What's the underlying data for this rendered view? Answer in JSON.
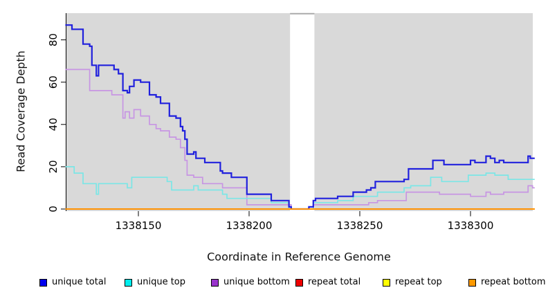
{
  "figure": {
    "background": "#ffffff",
    "panel_background": "#d9d9d9",
    "axis_color": "#000000",
    "gap_band_color": "#ffffff",
    "gap_band_top_line_color": "#aaaaaa"
  },
  "chart_data": {
    "type": "line",
    "step": true,
    "grid": false,
    "title": "",
    "xlabel": "Coordinate in Reference Genome",
    "ylabel": "Read Coverage Depth",
    "legend_position": "bottom",
    "xlim": [
      1338117,
      1338329
    ],
    "ylim": [
      0,
      92.6
    ],
    "x_ticks": [
      1338150,
      1338200,
      1338250,
      1338300
    ],
    "y_ticks": [
      0,
      20,
      40,
      60,
      80
    ],
    "gap_region": [
      1338218.5,
      1338229.5
    ],
    "series": [
      {
        "name": "repeat total",
        "line_color": "#dd0000",
        "legend_fill": "#ee0000",
        "values": [
          [
            1338117,
            0
          ]
        ]
      },
      {
        "name": "repeat top",
        "line_color": "#eeee00",
        "legend_fill": "#ffff00",
        "values": [
          [
            1338117,
            0
          ]
        ]
      },
      {
        "name": "unique bottom",
        "line_color": "#c795e3",
        "legend_fill": "#9933cc",
        "values": [
          [
            1338117,
            66
          ],
          [
            1338128,
            56
          ],
          [
            1338138,
            54
          ],
          [
            1338143,
            43
          ],
          [
            1338144,
            46
          ],
          [
            1338146,
            43
          ],
          [
            1338148,
            47
          ],
          [
            1338151,
            44
          ],
          [
            1338155,
            40
          ],
          [
            1338158,
            38
          ],
          [
            1338160,
            37
          ],
          [
            1338164,
            34
          ],
          [
            1338167,
            33
          ],
          [
            1338169,
            29
          ],
          [
            1338171,
            23
          ],
          [
            1338172,
            16
          ],
          [
            1338175,
            15
          ],
          [
            1338179,
            12
          ],
          [
            1338188,
            10
          ],
          [
            1338199,
            2
          ],
          [
            1338219,
            0
          ],
          [
            1338229,
            2
          ],
          [
            1338254,
            3
          ],
          [
            1338258,
            4
          ],
          [
            1338271,
            8
          ],
          [
            1338286,
            7
          ],
          [
            1338300,
            6
          ],
          [
            1338307,
            8
          ],
          [
            1338309,
            7
          ],
          [
            1338315,
            8
          ],
          [
            1338326,
            11
          ],
          [
            1338328,
            10
          ]
        ]
      },
      {
        "name": "unique top",
        "line_color": "#7be6e6",
        "legend_fill": "#00eeee",
        "values": [
          [
            1338117,
            20
          ],
          [
            1338121,
            17
          ],
          [
            1338125,
            12
          ],
          [
            1338131,
            7
          ],
          [
            1338132,
            12
          ],
          [
            1338145,
            10
          ],
          [
            1338147,
            15
          ],
          [
            1338163,
            13
          ],
          [
            1338165,
            9
          ],
          [
            1338175,
            11
          ],
          [
            1338177,
            9
          ],
          [
            1338188,
            7
          ],
          [
            1338190,
            5
          ],
          [
            1338210,
            3
          ],
          [
            1338218,
            0
          ],
          [
            1338229,
            3
          ],
          [
            1338240,
            4
          ],
          [
            1338247,
            6
          ],
          [
            1338258,
            8
          ],
          [
            1338270,
            10
          ],
          [
            1338273,
            11
          ],
          [
            1338282,
            15
          ],
          [
            1338287,
            13
          ],
          [
            1338299,
            16
          ],
          [
            1338307,
            17
          ],
          [
            1338311,
            16
          ],
          [
            1338317,
            14
          ]
        ]
      },
      {
        "name": "unique total",
        "line_color": "#2020dd",
        "legend_fill": "#0000ee",
        "values": [
          [
            1338117,
            87
          ],
          [
            1338120,
            85
          ],
          [
            1338125,
            78
          ],
          [
            1338128,
            77
          ],
          [
            1338129,
            68
          ],
          [
            1338131,
            63
          ],
          [
            1338132,
            68
          ],
          [
            1338139,
            66
          ],
          [
            1338141,
            64
          ],
          [
            1338143,
            56
          ],
          [
            1338145,
            55
          ],
          [
            1338146,
            58
          ],
          [
            1338148,
            61
          ],
          [
            1338151,
            60
          ],
          [
            1338155,
            54
          ],
          [
            1338158,
            53
          ],
          [
            1338160,
            50
          ],
          [
            1338164,
            44
          ],
          [
            1338167,
            43
          ],
          [
            1338169,
            39
          ],
          [
            1338170,
            37
          ],
          [
            1338171,
            33
          ],
          [
            1338172,
            26
          ],
          [
            1338175,
            27
          ],
          [
            1338176,
            24
          ],
          [
            1338180,
            22
          ],
          [
            1338187,
            18
          ],
          [
            1338188,
            17
          ],
          [
            1338192,
            15
          ],
          [
            1338199,
            7
          ],
          [
            1338210,
            4
          ],
          [
            1338218,
            1
          ],
          [
            1338219,
            0
          ],
          [
            1338227,
            1
          ],
          [
            1338229,
            4
          ],
          [
            1338230,
            5
          ],
          [
            1338240,
            6
          ],
          [
            1338247,
            8
          ],
          [
            1338253,
            9
          ],
          [
            1338255,
            10
          ],
          [
            1338257,
            13
          ],
          [
            1338270,
            14
          ],
          [
            1338272,
            19
          ],
          [
            1338283,
            23
          ],
          [
            1338288,
            21
          ],
          [
            1338300,
            23
          ],
          [
            1338302,
            22
          ],
          [
            1338307,
            25
          ],
          [
            1338309,
            24
          ],
          [
            1338311,
            22
          ],
          [
            1338313,
            23
          ],
          [
            1338315,
            22
          ],
          [
            1338326,
            25
          ],
          [
            1338327,
            24
          ]
        ]
      },
      {
        "name": "repeat bottom",
        "line_color": "#ff9100",
        "legend_fill": "#ff9900",
        "values": [
          [
            1338117,
            0
          ]
        ]
      }
    ],
    "legend_order": [
      "unique total",
      "unique top",
      "unique bottom",
      "repeat total",
      "repeat top",
      "repeat bottom"
    ]
  }
}
